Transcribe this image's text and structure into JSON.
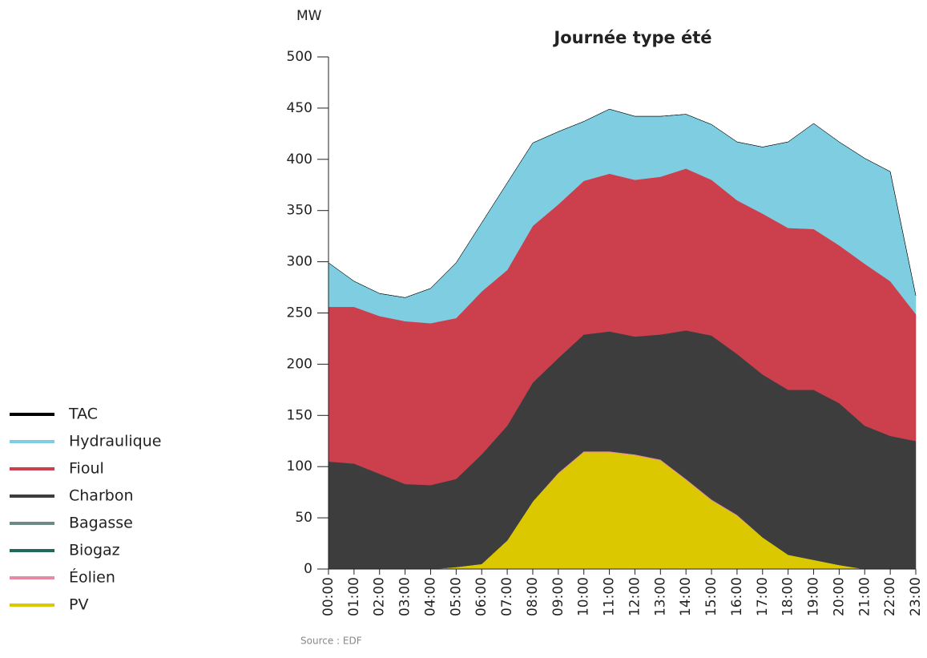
{
  "chart_data": {
    "type": "stacked_area",
    "title": "Journée type été",
    "y_label": "MW",
    "source": "Source : EDF",
    "categories": [
      "00:00",
      "01:00",
      "02:00",
      "03:00",
      "04:00",
      "05:00",
      "06:00",
      "07:00",
      "08:00",
      "09:00",
      "10:00",
      "11:00",
      "12:00",
      "13:00",
      "14:00",
      "15:00",
      "16:00",
      "17:00",
      "18:00",
      "19:00",
      "20:00",
      "21:00",
      "22:00",
      "23:00"
    ],
    "series": [
      {
        "name": "TAC",
        "color": "#000000",
        "values": [
          0,
          0,
          0,
          0,
          0,
          0,
          0,
          0,
          0,
          0,
          0,
          0,
          0,
          0,
          0,
          0,
          0,
          0,
          0,
          0,
          0,
          0,
          0,
          0
        ]
      },
      {
        "name": "Hydraulique",
        "color": "#7ecde0",
        "values": [
          43,
          25,
          22,
          23,
          34,
          54,
          67,
          85,
          81,
          71,
          58,
          63,
          62,
          59,
          53,
          54,
          57,
          65,
          84,
          103,
          101,
          103,
          107,
          18
        ]
      },
      {
        "name": "Fioul",
        "color": "#cc3f4c",
        "values": [
          151,
          153,
          154,
          159,
          158,
          157,
          159,
          152,
          153,
          150,
          150,
          154,
          153,
          154,
          158,
          152,
          150,
          157,
          158,
          157,
          154,
          158,
          151,
          124
        ]
      },
      {
        "name": "Charbon",
        "color": "#3d3d3d",
        "values": [
          105,
          103,
          93,
          83,
          82,
          86,
          107,
          112,
          116,
          112,
          114,
          117,
          115,
          122,
          145,
          160,
          157,
          159,
          161,
          166,
          158,
          140,
          130,
          125
        ]
      },
      {
        "name": "Bagasse",
        "color": "#6e8a84",
        "values": [
          0,
          0,
          0,
          0,
          0,
          0,
          0,
          0,
          0,
          0,
          0,
          0,
          0,
          0,
          0,
          0,
          0,
          0,
          0,
          0,
          0,
          0,
          0,
          0
        ]
      },
      {
        "name": "Biogaz",
        "color": "#1e6b5a",
        "values": [
          0,
          0,
          0,
          0,
          0,
          0,
          0,
          0,
          0,
          0,
          0,
          0,
          0,
          0,
          0,
          0,
          0,
          0,
          0,
          0,
          0,
          0,
          0,
          0
        ]
      },
      {
        "name": "Éolien",
        "color": "#e88aa6",
        "values": [
          0,
          0,
          0,
          0,
          0,
          0,
          0,
          0,
          0,
          1,
          1,
          1,
          1,
          1,
          1,
          1,
          1,
          0,
          0,
          0,
          0,
          0,
          0,
          0
        ]
      },
      {
        "name": "PV",
        "color": "#dcc800",
        "values": [
          0,
          0,
          0,
          0,
          0,
          2,
          5,
          28,
          66,
          93,
          114,
          114,
          111,
          106,
          87,
          67,
          52,
          31,
          14,
          9,
          4,
          0,
          0,
          0
        ]
      }
    ],
    "ylim": [
      0,
      500
    ],
    "yticks": [
      0,
      50,
      100,
      150,
      200,
      250,
      300,
      350,
      400,
      450,
      500
    ]
  }
}
